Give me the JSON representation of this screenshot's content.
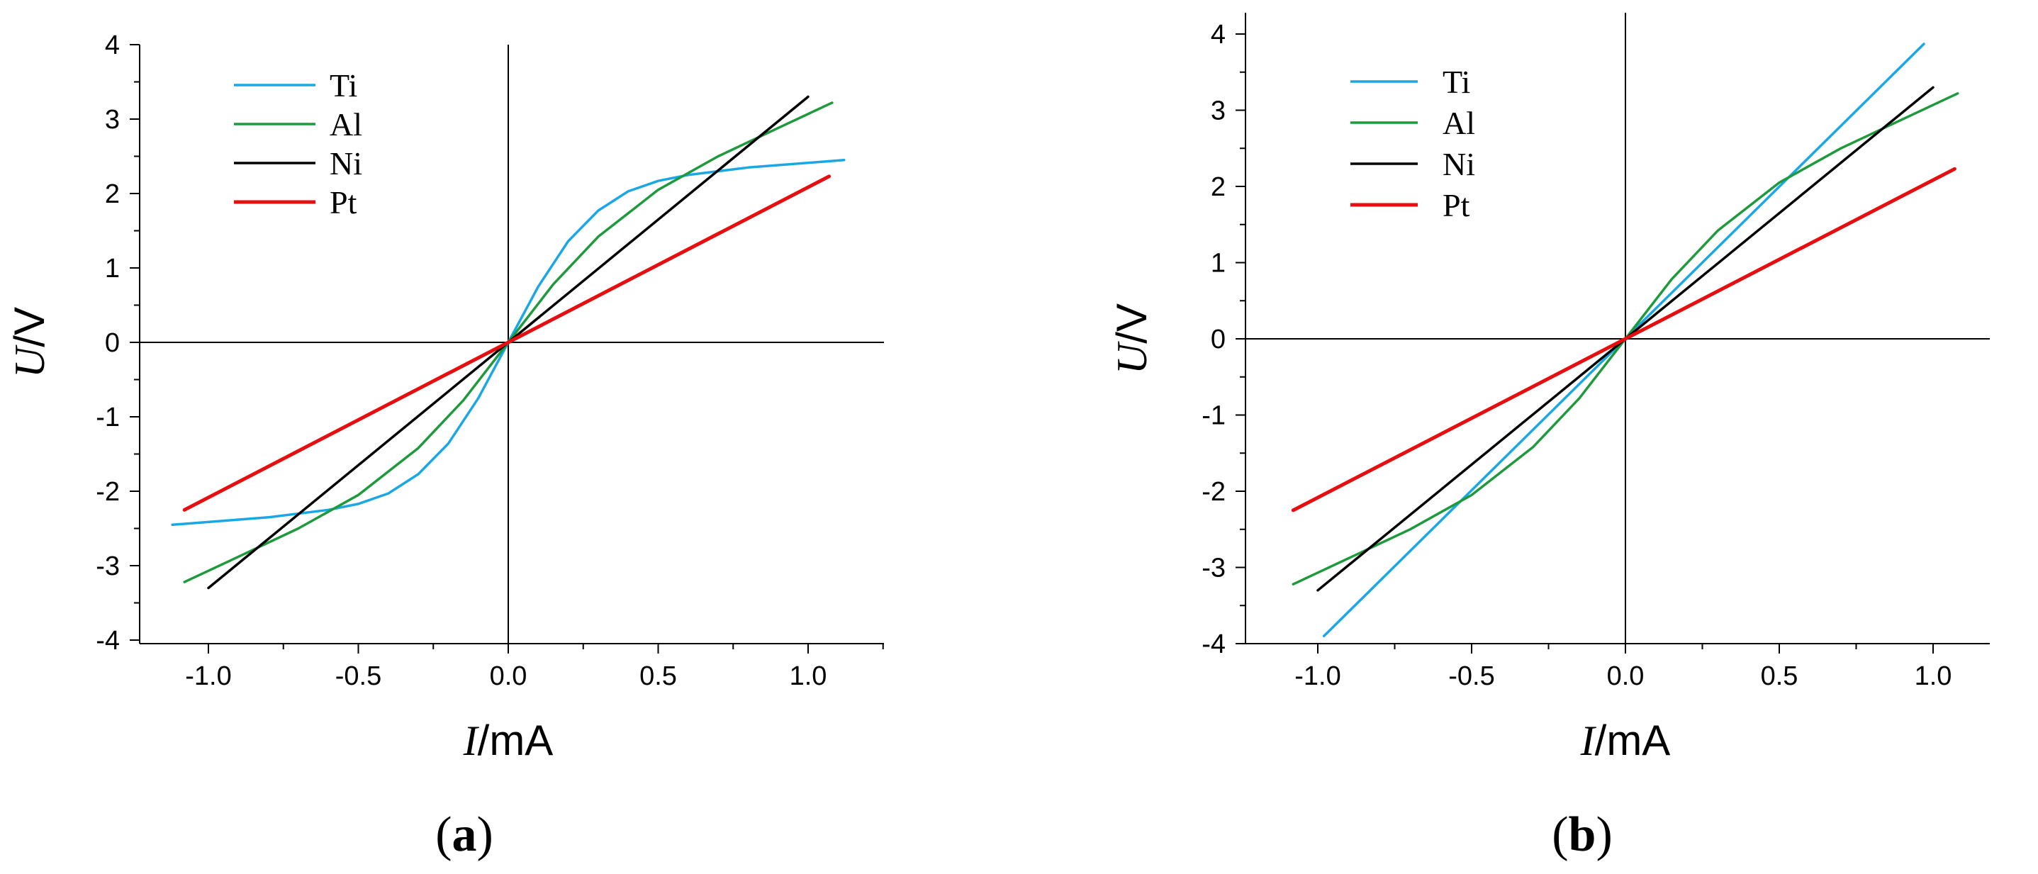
{
  "chart_data": [
    {
      "type": "line",
      "panel": "a",
      "panel_label_open": "(",
      "panel_label_letter": "a",
      "panel_label_close": ")",
      "title": "",
      "xlabel_italic": "I",
      "xlabel_unit": "/mA",
      "ylabel_italic": "U",
      "ylabel_unit": "/V",
      "xlim": [
        -1.25,
        1.25
      ],
      "ylim": [
        -4,
        4
      ],
      "x_ticks": [
        -1.0,
        -0.5,
        0.0,
        0.5,
        1.0
      ],
      "x_tick_labels": [
        "-1.0",
        "-0.5",
        "0.0",
        "0.5",
        "1.0"
      ],
      "y_ticks": [
        -4,
        -3,
        -2,
        -1,
        0,
        1,
        2,
        3,
        4
      ],
      "y_tick_labels": [
        "-4",
        "-3",
        "-2",
        "-1",
        "0",
        "1",
        "2",
        "3",
        "4"
      ],
      "legend_position": "top-left",
      "series": [
        {
          "name": "Ti",
          "color": "#1AA7E6",
          "x": [
            -1.12,
            -0.8,
            -0.6,
            -0.5,
            -0.4,
            -0.3,
            -0.2,
            -0.1,
            0.0,
            0.1,
            0.2,
            0.3,
            0.4,
            0.5,
            0.6,
            0.8,
            1.12
          ],
          "y": [
            -2.45,
            -2.35,
            -2.25,
            -2.17,
            -2.03,
            -1.77,
            -1.36,
            -0.75,
            0.0,
            0.75,
            1.36,
            1.77,
            2.03,
            2.17,
            2.25,
            2.35,
            2.45
          ]
        },
        {
          "name": "Al",
          "color": "#1E9A3C",
          "x": [
            -1.08,
            -0.9,
            -0.7,
            -0.5,
            -0.3,
            -0.15,
            0.0,
            0.15,
            0.3,
            0.5,
            0.7,
            0.9,
            1.08
          ],
          "y": [
            -3.22,
            -2.88,
            -2.5,
            -2.05,
            -1.42,
            -0.78,
            0.0,
            0.78,
            1.42,
            2.05,
            2.5,
            2.88,
            3.22
          ]
        },
        {
          "name": "Ni",
          "color": "#000000",
          "x": [
            -1.0,
            1.0
          ],
          "y": [
            -3.3,
            3.3
          ]
        },
        {
          "name": "Pt",
          "color": "#E60E0E",
          "x": [
            -1.08,
            1.07
          ],
          "y": [
            -2.25,
            2.23
          ]
        }
      ]
    },
    {
      "type": "line",
      "panel": "b",
      "panel_label_open": "(",
      "panel_label_letter": "b",
      "panel_label_close": ")",
      "title": "",
      "xlabel_italic": "I",
      "xlabel_unit": "/mA",
      "ylabel_italic": "U",
      "ylabel_unit": "/V",
      "xlim": [
        -1.25,
        1.25
      ],
      "ylim": [
        -4,
        4
      ],
      "x_ticks": [
        -1.0,
        -0.5,
        0.0,
        0.5,
        1.0
      ],
      "x_tick_labels": [
        "-1.0",
        "-0.5",
        "0.0",
        "0.5",
        "1.0"
      ],
      "y_ticks": [
        -4,
        -3,
        -2,
        -1,
        0,
        1,
        2,
        3,
        4
      ],
      "y_tick_labels": [
        "-4",
        "-3",
        "-2",
        "-1",
        "0",
        "1",
        "2",
        "3",
        "4"
      ],
      "legend_position": "top-left",
      "series": [
        {
          "name": "Ti",
          "color": "#1AA7E6",
          "x": [
            -0.98,
            0.97
          ],
          "y": [
            -3.9,
            3.87
          ]
        },
        {
          "name": "Al",
          "color": "#1E9A3C",
          "x": [
            -1.08,
            -0.9,
            -0.7,
            -0.5,
            -0.3,
            -0.15,
            0.0,
            0.15,
            0.3,
            0.5,
            0.7,
            0.9,
            1.08
          ],
          "y": [
            -3.22,
            -2.88,
            -2.5,
            -2.05,
            -1.42,
            -0.78,
            0.0,
            0.78,
            1.42,
            2.05,
            2.5,
            2.88,
            3.22
          ]
        },
        {
          "name": "Ni",
          "color": "#000000",
          "x": [
            -1.0,
            1.0
          ],
          "y": [
            -3.3,
            3.3
          ]
        },
        {
          "name": "Pt",
          "color": "#E60E0E",
          "x": [
            -1.08,
            1.07
          ],
          "y": [
            -2.25,
            2.23
          ]
        }
      ]
    }
  ]
}
